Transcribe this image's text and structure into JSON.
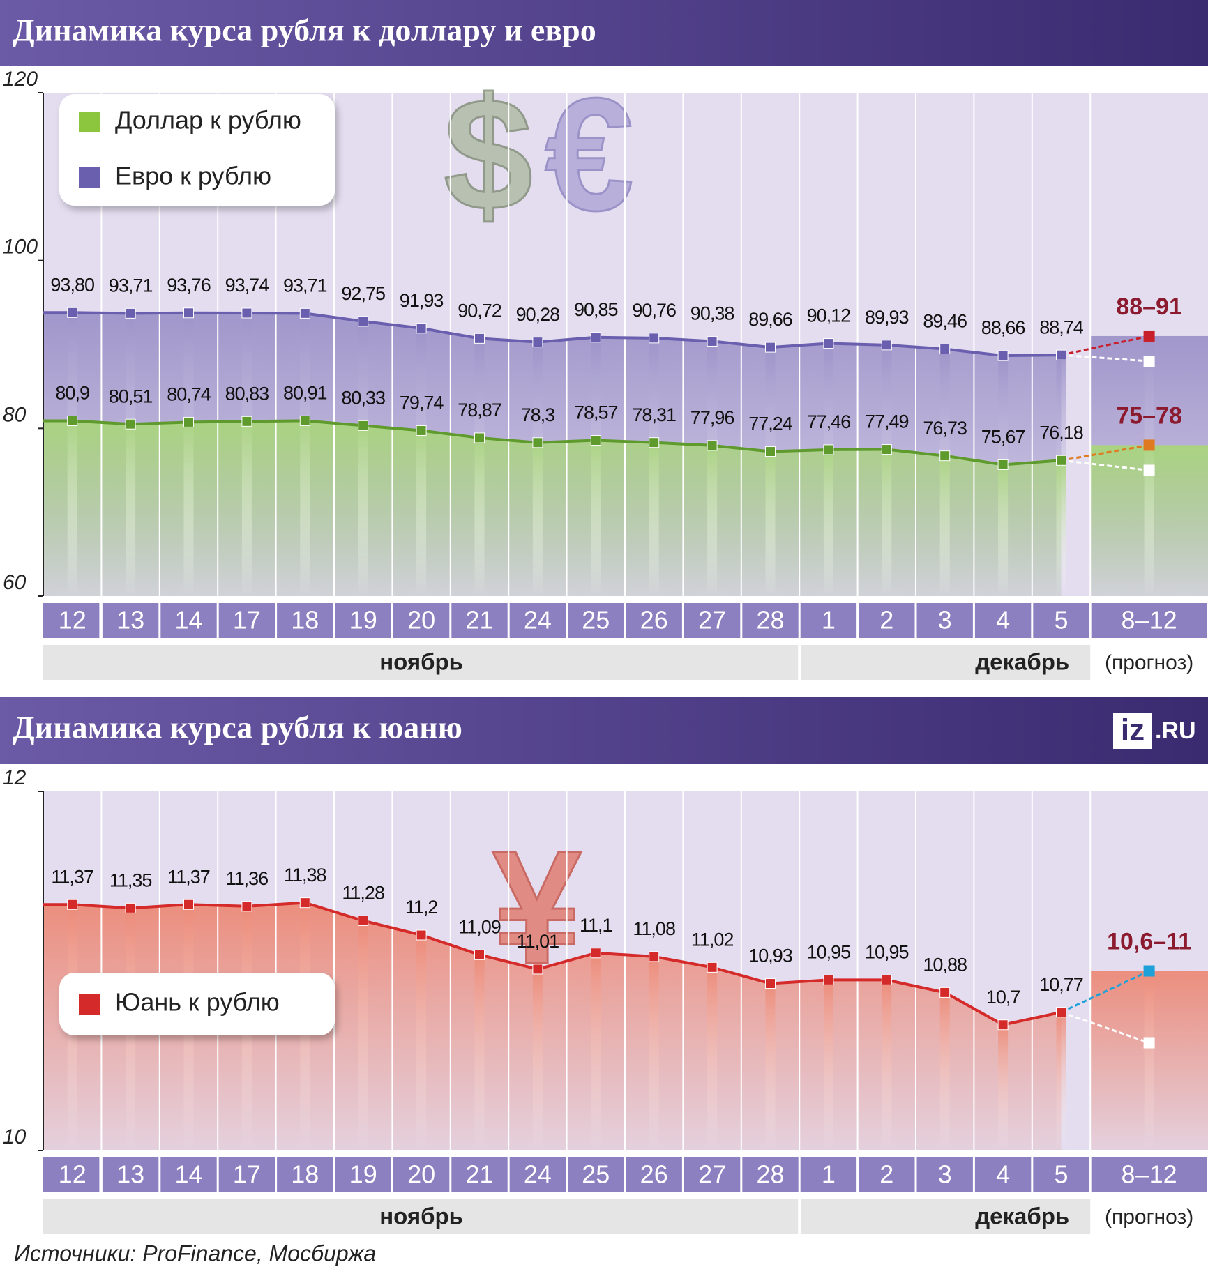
{
  "chart_data": [
    {
      "type": "line",
      "title": "Динамика курса рубля к доллару и евро",
      "categories": [
        "12",
        "13",
        "14",
        "17",
        "18",
        "19",
        "20",
        "21",
        "24",
        "25",
        "26",
        "27",
        "28",
        "1",
        "2",
        "3",
        "4",
        "5",
        "8–12"
      ],
      "month_groups": [
        {
          "label": "ноябрь",
          "span": 13
        },
        {
          "label": "декабрь",
          "span": 5
        },
        {
          "label": "(прогноз)",
          "span": 1
        }
      ],
      "ylim": [
        60,
        120
      ],
      "yticks": [
        60,
        80,
        100,
        120
      ],
      "symbols": [
        "$",
        "€"
      ],
      "series": [
        {
          "name": "Евро к рублю",
          "color": "#6a5fae",
          "area_color": "#9d93c9",
          "values": [
            93.8,
            93.71,
            93.76,
            93.74,
            93.71,
            92.75,
            91.93,
            90.72,
            90.28,
            90.85,
            90.76,
            90.38,
            89.66,
            90.12,
            89.93,
            89.46,
            88.66,
            88.74,
            null
          ],
          "value_labels": [
            "93,80",
            "93,71",
            "93,76",
            "93,74",
            "93,71",
            "92,75",
            "91,93",
            "90,72",
            "90,28",
            "90,85",
            "90,76",
            "90,38",
            "89,66",
            "90,12",
            "89,93",
            "89,46",
            "88,66",
            "88,74",
            null
          ],
          "forecast": {
            "label": "88–91",
            "low": 88,
            "high": 91,
            "color": "#c8202a"
          }
        },
        {
          "name": "Доллар к рублю",
          "color": "#5e9a2c",
          "area_color": "#a9d57c",
          "values": [
            80.9,
            80.51,
            80.74,
            80.83,
            80.91,
            80.33,
            79.74,
            78.87,
            78.3,
            78.57,
            78.31,
            77.96,
            77.24,
            77.46,
            77.49,
            76.73,
            75.67,
            76.18,
            null
          ],
          "value_labels": [
            "80,9",
            "80,51",
            "80,74",
            "80,83",
            "80,91",
            "80,33",
            "79,74",
            "78,87",
            "78,3",
            "78,57",
            "78,31",
            "77,96",
            "77,24",
            "77,46",
            "77,49",
            "76,73",
            "75,67",
            "76,18",
            null
          ],
          "forecast": {
            "label": "75–78",
            "low": 75,
            "high": 78,
            "color": "#e07a20"
          }
        }
      ]
    },
    {
      "type": "line",
      "title": "Динамика курса рубля к юаню",
      "categories": [
        "12",
        "13",
        "14",
        "17",
        "18",
        "19",
        "20",
        "21",
        "24",
        "25",
        "26",
        "27",
        "28",
        "1",
        "2",
        "3",
        "4",
        "5",
        "8–12"
      ],
      "month_groups": [
        {
          "label": "ноябрь",
          "span": 13
        },
        {
          "label": "декабрь",
          "span": 5
        },
        {
          "label": "(прогноз)",
          "span": 1
        }
      ],
      "ylim": [
        10,
        12
      ],
      "yticks": [
        10,
        12
      ],
      "symbols": [
        "¥"
      ],
      "series": [
        {
          "name": "Юань к рублю",
          "color": "#d42a2a",
          "area_color": "#ec8a78",
          "values": [
            11.37,
            11.35,
            11.37,
            11.36,
            11.38,
            11.28,
            11.2,
            11.09,
            11.01,
            11.1,
            11.08,
            11.02,
            10.93,
            10.95,
            10.95,
            10.88,
            10.7,
            10.77,
            null
          ],
          "value_labels": [
            "11,37",
            "11,35",
            "11,37",
            "11,36",
            "11,38",
            "11,28",
            "11,2",
            "11,09",
            "11,01",
            "11,1",
            "11,08",
            "11,02",
            "10,93",
            "10,95",
            "10,95",
            "10,88",
            "10,7",
            "10,77",
            null
          ],
          "forecast": {
            "label": "10,6–11",
            "low": 10.6,
            "high": 11,
            "color": "#1ea0d8"
          }
        }
      ]
    }
  ],
  "logo": [
    "iz",
    ".RU"
  ],
  "source": "Источники: ProFinance, Мосбиржа"
}
